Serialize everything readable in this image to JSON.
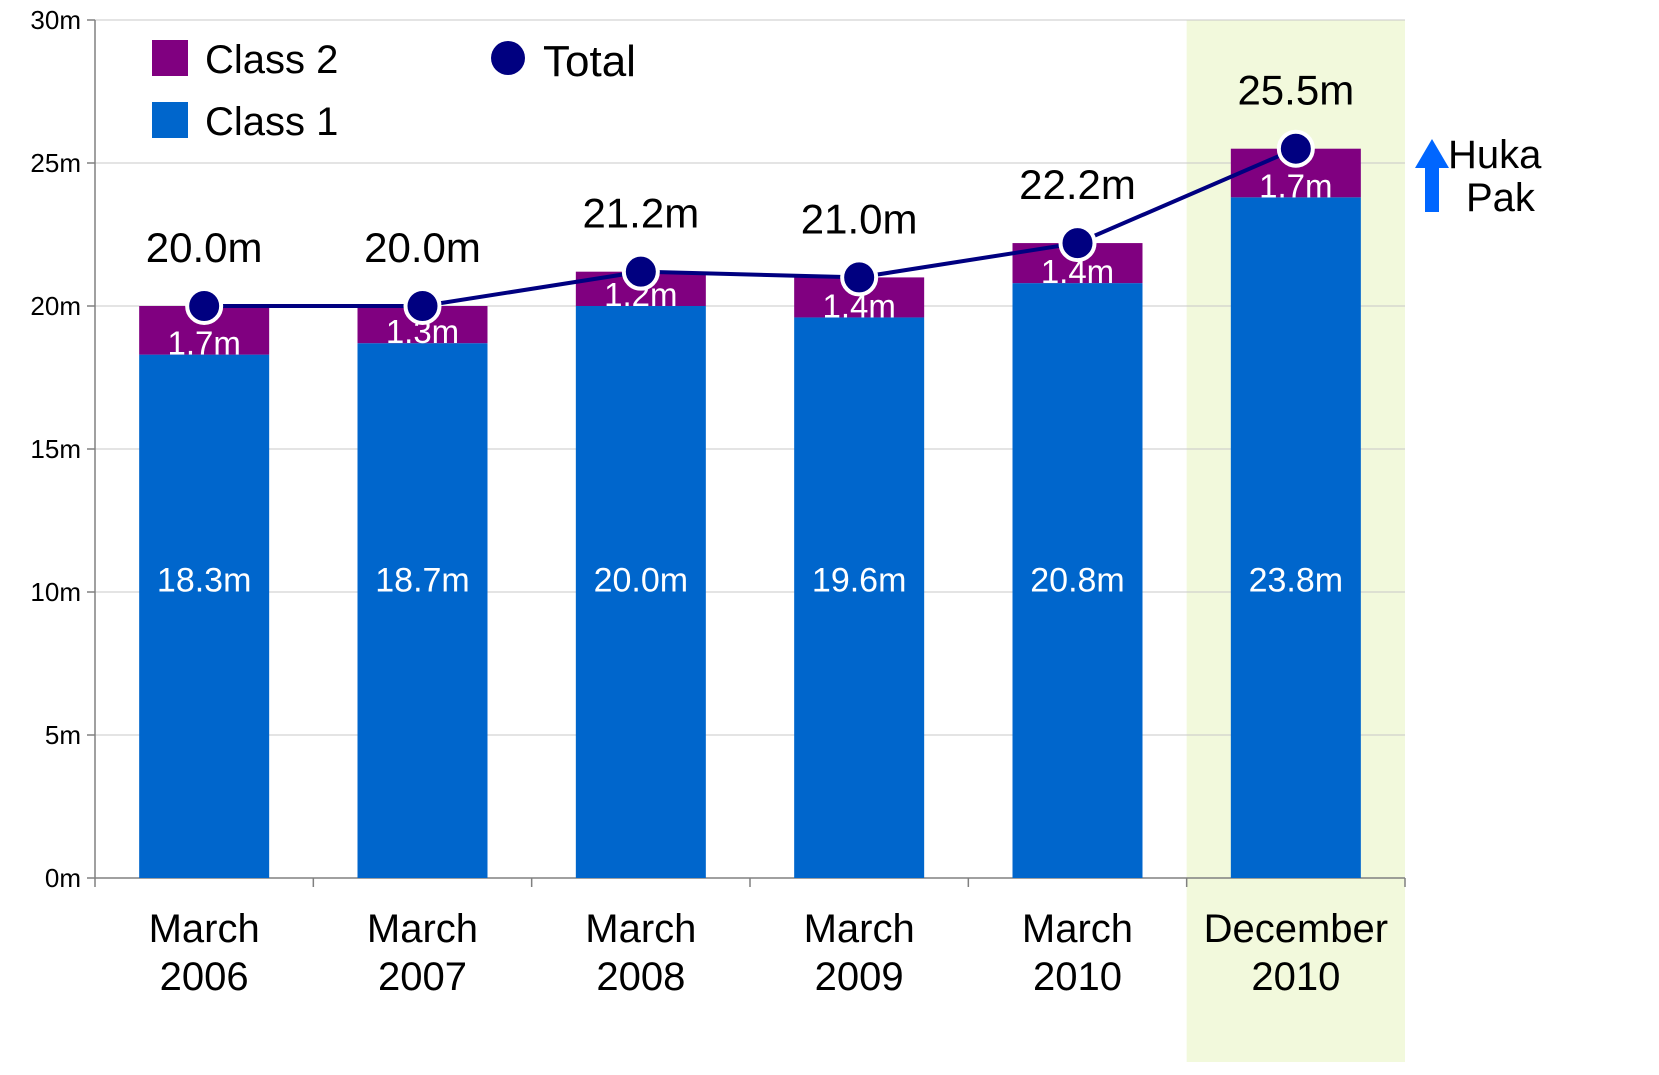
{
  "chart_data": {
    "type": "bar",
    "stacked": true,
    "categories": [
      "March\n2006",
      "March\n2007",
      "March\n2008",
      "March\n2009",
      "March\n2010",
      "December\n2010"
    ],
    "series": [
      {
        "name": "Class 1",
        "color": "#0066CC",
        "values": [
          18.3,
          18.7,
          20.0,
          19.6,
          20.8,
          23.8
        ],
        "labels": [
          "18.3m",
          "18.7m",
          "20.0m",
          "19.6m",
          "20.8m",
          "23.8m"
        ]
      },
      {
        "name": "Class 2",
        "color": "#800080",
        "values": [
          1.7,
          1.3,
          1.2,
          1.4,
          1.4,
          1.7
        ],
        "labels": [
          "1.7m",
          "1.3m",
          "1.2m",
          "1.4m",
          "1.4m",
          "1.7m"
        ]
      }
    ],
    "line": {
      "name": "Total",
      "type": "line",
      "color": "#000080",
      "values": [
        20.0,
        20.0,
        21.2,
        21.0,
        22.2,
        25.5
      ],
      "labels": [
        "20.0m",
        "20.0m",
        "21.2m",
        "21.0m",
        "22.2m",
        "25.5m"
      ]
    },
    "ylim": [
      0,
      30
    ],
    "yticks": [
      0,
      5,
      10,
      15,
      20,
      25,
      30
    ],
    "ytick_labels": [
      "0m",
      "5m",
      "10m",
      "15m",
      "20m",
      "25m",
      "30m"
    ],
    "highlighted_category": "December\n2010",
    "highlight_color": "#F2F9DC",
    "grid": true,
    "legend_placement": "top-left",
    "annotation": {
      "text_lines": [
        "Huka",
        "Pak"
      ],
      "arrow_direction": "up",
      "arrow_color": "#0066FF"
    },
    "title": "",
    "xlabel": "",
    "ylabel": ""
  }
}
